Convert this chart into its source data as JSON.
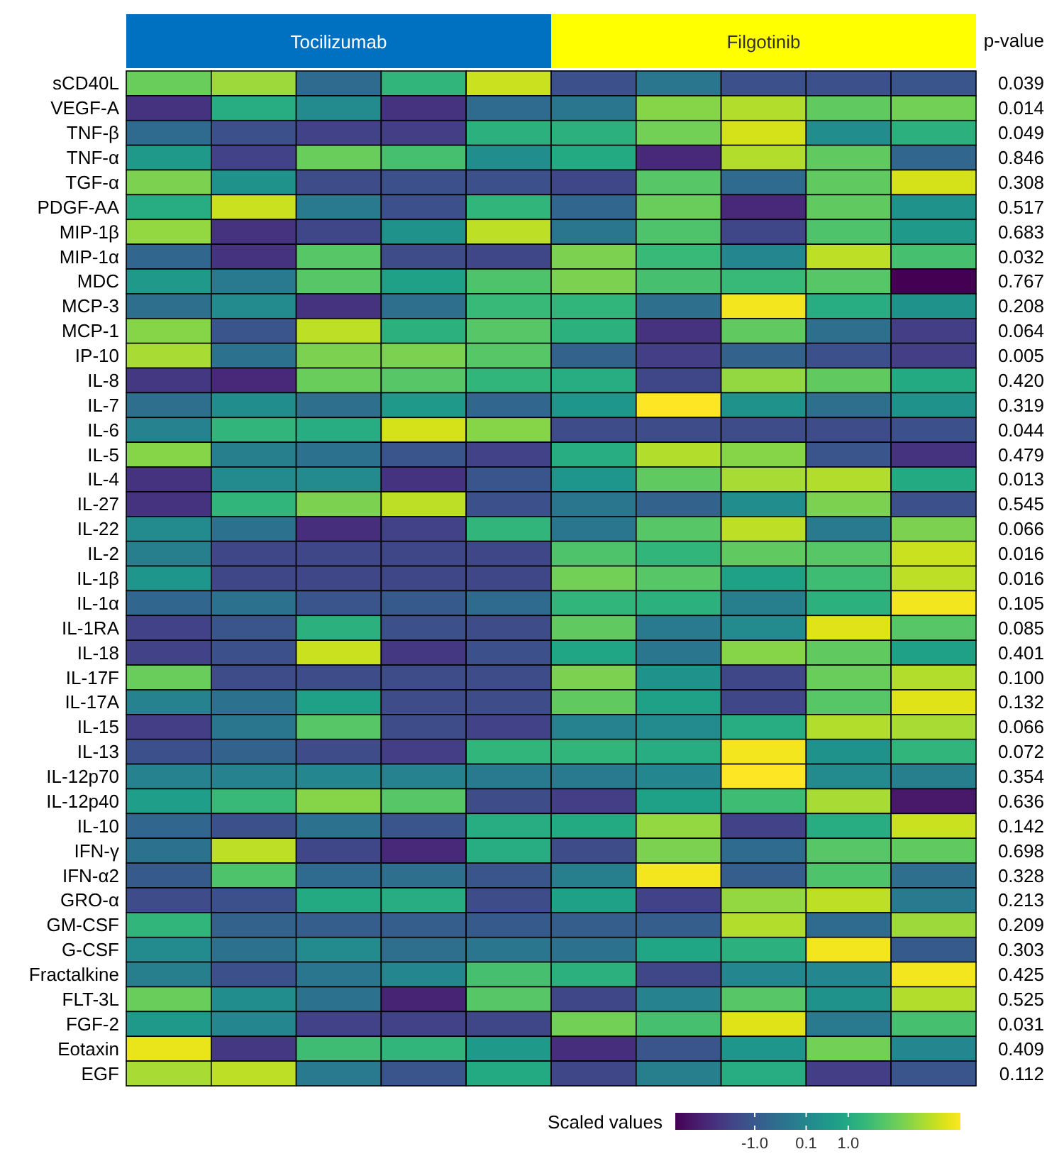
{
  "chart_data": {
    "type": "heatmap",
    "annotations": [
      "Tocilizumab",
      "Filgotinib"
    ],
    "y2label": "p-value",
    "clabel": "Scaled values",
    "clim": [
      -2.7,
      3.4
    ],
    "cticks": [
      {
        "value": -1,
        "label": "-1.0"
      },
      {
        "value": 0.1,
        "label": "0.1"
      },
      {
        "value": 1,
        "label": "1.0"
      }
    ],
    "categories": [
      null,
      null,
      null,
      null,
      null,
      null,
      null,
      null,
      null,
      null
    ],
    "y_categories": [
      "sCD40L",
      "VEGF-A",
      "TNF-β",
      "TNF-α",
      "TGF-α",
      "PDGF-AA",
      "MIP-1β",
      "MIP-1α",
      "MDC",
      "MCP-3",
      "MCP-1",
      "IP-10",
      "IL-8",
      "IL-7",
      "IL-6",
      "IL-5",
      "IL-4",
      "IL-27",
      "IL-22",
      "IL-2",
      "IL-1β",
      "IL-1α",
      "IL-1RA",
      "IL-18",
      "IL-17F",
      "IL-17A",
      "IL-15",
      "IL-13",
      "IL-12p70",
      "IL-12p40",
      "IL-10",
      "IFN-γ",
      "IFN-α2",
      "GRO-α",
      "GM-CSF",
      "G-CSF",
      "Fractalkine",
      "FLT-3L",
      "FGF-2",
      "Eotaxin",
      "EGF"
    ],
    "y2_categories": [
      "0.039",
      "0.014",
      "0.049",
      "0.846",
      "0.308",
      "0.517",
      "0.683",
      "0.032",
      "0.767",
      "0.208",
      "0.064",
      "0.005",
      "0.420",
      "0.319",
      "0.044",
      "0.479",
      "0.013",
      "0.545",
      "0.066",
      "0.016",
      "0.016",
      "0.105",
      "0.085",
      "0.401",
      "0.100",
      "0.132",
      "0.066",
      "0.072",
      "0.354",
      "0.636",
      "0.142",
      "0.698",
      "0.328",
      "0.213",
      "0.209",
      "0.303",
      "0.425",
      "0.525",
      "0.031",
      "0.409",
      "0.112"
    ],
    "cells": [
      [
        2.0,
        2.5,
        -0.6,
        1.3,
        2.9,
        -1.2,
        -0.3,
        -1.2,
        -1.2,
        -1.1
      ],
      [
        -1.8,
        1.1,
        0.2,
        -1.8,
        -0.6,
        -0.3,
        2.3,
        2.7,
        1.9,
        2.1
      ],
      [
        -0.6,
        -1.2,
        -1.5,
        -1.6,
        1.2,
        1.2,
        2.1,
        3.0,
        0.3,
        1.2
      ],
      [
        0.6,
        -1.5,
        2.0,
        1.6,
        0.3,
        1.0,
        -2.0,
        2.7,
        1.9,
        -0.7
      ],
      [
        2.2,
        0.4,
        -1.3,
        -1.2,
        -1.2,
        -1.4,
        1.8,
        -0.6,
        1.9,
        3.0
      ],
      [
        1.1,
        2.9,
        -0.2,
        -1.2,
        1.3,
        -0.7,
        2.0,
        -2.0,
        1.9,
        0.4
      ],
      [
        2.4,
        -1.8,
        -1.4,
        0.4,
        2.8,
        -0.3,
        1.7,
        -1.4,
        1.7,
        0.6
      ],
      [
        -0.7,
        -1.8,
        1.8,
        -1.3,
        -1.4,
        2.2,
        1.4,
        0.1,
        2.8,
        1.6
      ],
      [
        0.6,
        -0.2,
        1.8,
        0.8,
        1.7,
        2.2,
        1.6,
        1.4,
        1.8,
        -2.7
      ],
      [
        -0.5,
        0.2,
        -1.8,
        -0.5,
        1.4,
        1.3,
        -0.5,
        3.3,
        1.1,
        0.4
      ],
      [
        2.3,
        -1.1,
        2.8,
        1.2,
        1.8,
        1.2,
        -1.8,
        1.9,
        -0.5,
        -1.6
      ],
      [
        2.6,
        -0.4,
        2.2,
        2.2,
        1.8,
        -0.8,
        -1.6,
        -0.8,
        -1.2,
        -1.6
      ],
      [
        -1.7,
        -2.0,
        2.0,
        1.8,
        1.3,
        1.1,
        -1.4,
        2.4,
        1.9,
        1.0
      ],
      [
        -0.5,
        0.3,
        -0.5,
        0.6,
        -0.7,
        0.5,
        3.4,
        0.4,
        -0.5,
        0.4
      ],
      [
        0.0,
        1.3,
        1.1,
        3.0,
        2.3,
        -1.3,
        -1.3,
        -1.3,
        -1.3,
        -1.2
      ],
      [
        2.3,
        -0.1,
        -0.4,
        -1.1,
        -1.5,
        1.1,
        2.7,
        2.3,
        -1.1,
        -1.8
      ],
      [
        -1.8,
        0.2,
        0.2,
        -1.8,
        -1.1,
        0.5,
        1.9,
        2.6,
        2.7,
        1.0
      ],
      [
        -1.8,
        1.3,
        2.2,
        2.8,
        -1.2,
        -0.3,
        -0.8,
        0.3,
        2.2,
        -1.2
      ],
      [
        0.2,
        -0.4,
        -1.9,
        -1.5,
        1.3,
        -0.3,
        1.8,
        2.8,
        -0.2,
        2.2
      ],
      [
        -0.1,
        -1.4,
        -1.4,
        -1.4,
        -1.4,
        1.7,
        1.3,
        1.9,
        1.8,
        2.9
      ],
      [
        0.5,
        -1.4,
        -1.4,
        -1.4,
        -1.4,
        2.1,
        1.8,
        0.8,
        1.5,
        2.8
      ],
      [
        -0.7,
        -0.4,
        -1.1,
        -1.0,
        -0.6,
        1.3,
        1.2,
        -0.1,
        1.2,
        3.3
      ],
      [
        -1.5,
        -1.1,
        1.2,
        -1.2,
        -1.3,
        1.9,
        -0.2,
        0.2,
        3.1,
        1.8
      ],
      [
        -1.5,
        -1.2,
        2.9,
        -1.7,
        -1.2,
        0.9,
        -0.3,
        2.3,
        1.9,
        0.8
      ],
      [
        2.0,
        -1.3,
        -1.3,
        -1.3,
        -1.3,
        2.2,
        0.4,
        -1.4,
        2.0,
        2.7
      ],
      [
        0.0,
        -0.4,
        0.8,
        -1.3,
        -1.3,
        1.9,
        0.8,
        -1.4,
        1.8,
        3.1
      ],
      [
        -1.6,
        -0.3,
        1.8,
        -1.3,
        -1.5,
        0.0,
        0.2,
        1.1,
        2.7,
        2.6
      ],
      [
        -1.2,
        -0.8,
        -1.3,
        -1.6,
        1.3,
        1.3,
        1.1,
        3.3,
        0.4,
        1.3
      ],
      [
        0.0,
        0.0,
        0.1,
        0.0,
        -0.2,
        -0.2,
        0.1,
        3.4,
        0.2,
        -0.1
      ],
      [
        0.7,
        1.4,
        2.3,
        1.8,
        -1.3,
        -1.6,
        0.8,
        1.5,
        2.6,
        -2.3
      ],
      [
        -0.7,
        -1.2,
        -0.4,
        -1.1,
        1.1,
        1.0,
        2.4,
        -1.5,
        1.1,
        2.9
      ],
      [
        -0.4,
        2.8,
        -1.4,
        -2.0,
        1.1,
        -1.3,
        2.2,
        -0.6,
        1.8,
        1.9
      ],
      [
        -1.0,
        1.7,
        -0.6,
        -0.5,
        -1.1,
        -0.1,
        3.3,
        -0.9,
        1.7,
        -0.5
      ],
      [
        -1.3,
        -1.2,
        1.0,
        1.1,
        -1.3,
        0.8,
        -1.5,
        2.4,
        2.8,
        -0.2
      ],
      [
        1.3,
        -0.8,
        -0.9,
        -0.9,
        -1.0,
        -0.9,
        -0.9,
        2.7,
        -0.6,
        2.5
      ],
      [
        0.2,
        -0.4,
        0.2,
        -0.5,
        -0.3,
        -0.4,
        0.9,
        1.2,
        3.3,
        -1.0
      ],
      [
        -0.1,
        -1.2,
        -0.3,
        0.1,
        1.6,
        1.2,
        -1.4,
        0.1,
        0.1,
        3.3
      ],
      [
        2.0,
        0.3,
        -0.4,
        -2.1,
        1.8,
        -1.4,
        0.0,
        1.8,
        0.4,
        2.7
      ],
      [
        0.6,
        0.1,
        -1.5,
        -1.5,
        -1.4,
        2.1,
        1.6,
        3.1,
        -0.2,
        1.6
      ],
      [
        3.2,
        -1.7,
        1.5,
        1.3,
        0.6,
        -1.9,
        -1.1,
        0.5,
        2.1,
        0.1
      ],
      [
        2.6,
        2.8,
        -0.2,
        -1.1,
        1.0,
        -1.4,
        -0.1,
        1.1,
        -1.6,
        -1.1
      ]
    ]
  }
}
